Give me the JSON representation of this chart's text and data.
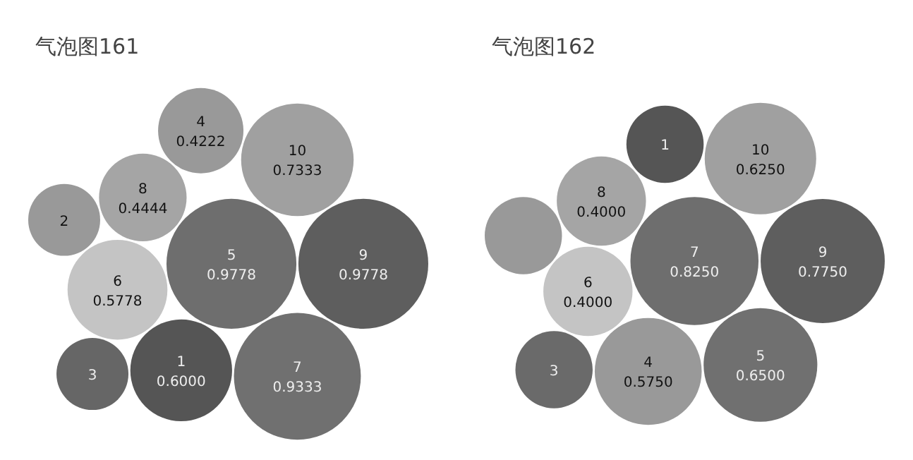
{
  "chart_data": [
    {
      "type": "other",
      "title": "气泡图161",
      "categories": [
        "1",
        "2",
        "3",
        "4",
        "5",
        "6",
        "7",
        "8",
        "9",
        "10"
      ],
      "values": [
        0.6,
        null,
        null,
        0.4222,
        0.9778,
        0.5778,
        0.9333,
        0.4444,
        0.9778,
        0.7333
      ],
      "value_labels": [
        "0.6000",
        null,
        null,
        "0.4222",
        "0.9778",
        "0.5778",
        "0.9333",
        "0.4444",
        "0.9778",
        "0.7333"
      ],
      "colors": [
        "#555555",
        "#999999",
        "#666666",
        "#999999",
        "#6e6e6e",
        "#c4c4c4",
        "#707070",
        "#a5a5a5",
        "#5e5e5e",
        "#a0a0a0"
      ]
    },
    {
      "type": "other",
      "title": "气泡图162",
      "categories": [
        "1",
        null,
        "3",
        "4",
        "5",
        "6",
        "7",
        "8",
        "9",
        "10"
      ],
      "values": [
        null,
        null,
        null,
        0.575,
        0.65,
        0.4,
        0.825,
        0.4,
        0.775,
        0.625
      ],
      "value_labels": [
        null,
        null,
        null,
        "0.5750",
        "0.6500",
        "0.4000",
        "0.8250",
        "0.4000",
        "0.7750",
        "0.6250"
      ],
      "colors": [
        "#555555",
        "#999999",
        "#6a6a6a",
        "#999999",
        "#707070",
        "#c4c4c4",
        "#6e6e6e",
        "#a5a5a5",
        "#5e5e5e",
        "#a0a0a0"
      ]
    }
  ]
}
